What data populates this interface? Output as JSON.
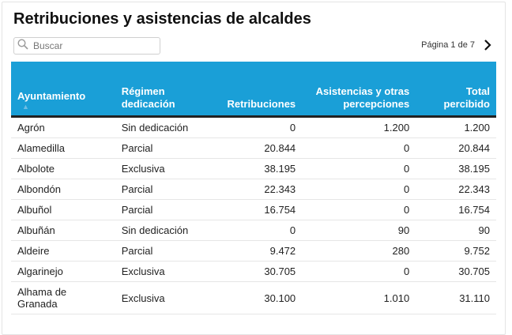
{
  "title": "Retribuciones y asistencias de alcaldes",
  "search": {
    "placeholder": "Buscar"
  },
  "pager": {
    "label": "Página 1 de 7"
  },
  "table": {
    "headers": {
      "ayuntamiento": "Ayuntamiento",
      "regimen": "Régimen dedicación",
      "retribuciones": "Retribuciones",
      "asistencias": "Asistencias y otras percepciones",
      "total": "Total percibido"
    },
    "rows": [
      {
        "ayuntamiento": "Agrón",
        "regimen": "Sin dedicación",
        "retribuciones": "0",
        "asistencias": "1.200",
        "total": "1.200"
      },
      {
        "ayuntamiento": "Alamedilla",
        "regimen": "Parcial",
        "retribuciones": "20.844",
        "asistencias": "0",
        "total": "20.844"
      },
      {
        "ayuntamiento": "Albolote",
        "regimen": "Exclusiva",
        "retribuciones": "38.195",
        "asistencias": "0",
        "total": "38.195"
      },
      {
        "ayuntamiento": "Albondón",
        "regimen": "Parcial",
        "retribuciones": "22.343",
        "asistencias": "0",
        "total": "22.343"
      },
      {
        "ayuntamiento": "Albuñol",
        "regimen": "Parcial",
        "retribuciones": "16.754",
        "asistencias": "0",
        "total": "16.754"
      },
      {
        "ayuntamiento": "Albuñán",
        "regimen": "Sin dedicación",
        "retribuciones": "0",
        "asistencias": "90",
        "total": "90"
      },
      {
        "ayuntamiento": "Aldeire",
        "regimen": "Parcial",
        "retribuciones": "9.472",
        "asistencias": "280",
        "total": "9.752"
      },
      {
        "ayuntamiento": "Algarinejo",
        "regimen": "Exclusiva",
        "retribuciones": "30.705",
        "asistencias": "0",
        "total": "30.705"
      },
      {
        "ayuntamiento": "Alhama de Granada",
        "regimen": "Exclusiva",
        "retribuciones": "30.100",
        "asistencias": "1.010",
        "total": "31.110"
      }
    ]
  },
  "icons": {
    "search": "search-icon",
    "next": "chevron-right-icon",
    "sort": "sort-ascending-icon"
  },
  "colors": {
    "header_bg": "#1a9fd7",
    "header_text": "#ffffff"
  }
}
